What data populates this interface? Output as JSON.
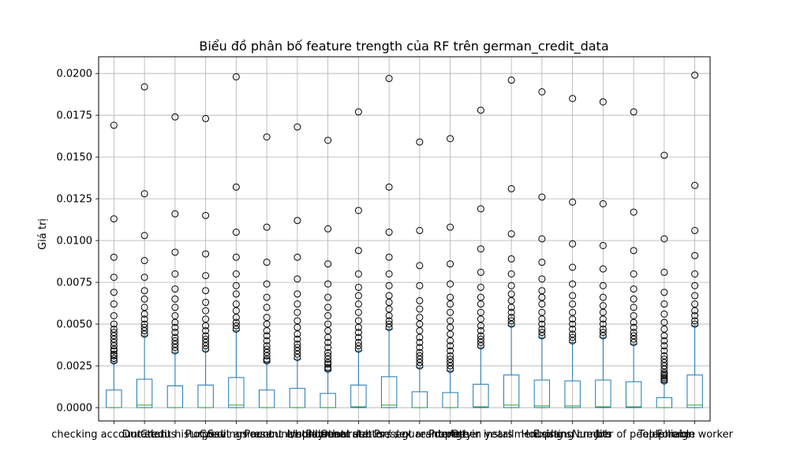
{
  "chart_data": {
    "type": "boxplot",
    "title": "Biểu đồ phân bố feature trength của RF trên german_credit_data",
    "xlabel": "",
    "ylabel": "Giá trị",
    "ylim": [
      -0.0008,
      0.021
    ],
    "yticks": [
      0.0,
      0.0025,
      0.005,
      0.0075,
      0.01,
      0.0125,
      0.015,
      0.0175,
      0.02
    ],
    "ytick_labels": [
      "0.0000",
      "0.0025",
      "0.0050",
      "0.0075",
      "0.0100",
      "0.0125",
      "0.0150",
      "0.0175",
      "0.0200"
    ],
    "grid": true,
    "box_color": "#1f77b4",
    "median_color": "#2ca02c",
    "flier_color": "#000000",
    "categories": [
      "checking account status",
      "Duration",
      "Credit history",
      "Purpose",
      "Credit amount",
      "Savings account/bonds",
      "Present employment",
      "Installment rate",
      "Personal status / sex",
      "Other debtors / guarantors",
      "Present residence",
      "Property",
      "Age in years",
      "Other installment plans",
      "Housing",
      "Existing credits",
      "Job",
      "Number of people liable",
      "Telephone",
      "Foreign worker"
    ],
    "series": [
      {
        "q1": 0.0,
        "median": 0.0,
        "q3": 0.00105,
        "whisker_high": 0.0027,
        "outliers": [
          0.0028,
          0.00295,
          0.0031,
          0.0032,
          0.0034,
          0.0035,
          0.0037,
          0.0039,
          0.0041,
          0.0043,
          0.0045,
          0.0047,
          0.005,
          0.0055,
          0.0062,
          0.0069,
          0.0078,
          0.009,
          0.0113,
          0.0169
        ]
      },
      {
        "q1": 0.0,
        "median": 0.00015,
        "q3": 0.0017,
        "whisker_high": 0.0043,
        "outliers": [
          0.0044,
          0.0046,
          0.0048,
          0.005,
          0.0053,
          0.0056,
          0.006,
          0.0065,
          0.007,
          0.0078,
          0.0088,
          0.0103,
          0.0128,
          0.0192
        ]
      },
      {
        "q1": 0.0,
        "median": 0.0,
        "q3": 0.0013,
        "whisker_high": 0.0033,
        "outliers": [
          0.0034,
          0.0036,
          0.0038,
          0.004,
          0.0042,
          0.0045,
          0.0048,
          0.0051,
          0.0055,
          0.006,
          0.0065,
          0.0071,
          0.008,
          0.0093,
          0.0116,
          0.0174
        ]
      },
      {
        "q1": 0.0,
        "median": 0.0,
        "q3": 0.00135,
        "whisker_high": 0.0034,
        "outliers": [
          0.0035,
          0.0037,
          0.0039,
          0.0041,
          0.0043,
          0.0046,
          0.0049,
          0.0053,
          0.0058,
          0.0063,
          0.007,
          0.0079,
          0.0092,
          0.0115,
          0.0173
        ]
      },
      {
        "q1": 0.0,
        "median": 0.00015,
        "q3": 0.0018,
        "whisker_high": 0.0046,
        "outliers": [
          0.0047,
          0.0049,
          0.0051,
          0.0054,
          0.0058,
          0.0062,
          0.0068,
          0.0073,
          0.008,
          0.009,
          0.0105,
          0.0132,
          0.0198
        ]
      },
      {
        "q1": 0.0,
        "median": 0.0,
        "q3": 0.00105,
        "whisker_high": 0.0027,
        "outliers": [
          0.0028,
          0.0029,
          0.0031,
          0.0033,
          0.0035,
          0.0037,
          0.004,
          0.0043,
          0.0046,
          0.005,
          0.0054,
          0.006,
          0.0066,
          0.0074,
          0.0087,
          0.0108,
          0.0162
        ]
      },
      {
        "q1": 0.0,
        "median": 0.0,
        "q3": 0.00115,
        "whisker_high": 0.0029,
        "outliers": [
          0.003,
          0.0032,
          0.0034,
          0.0036,
          0.0038,
          0.0041,
          0.0044,
          0.0048,
          0.0052,
          0.0057,
          0.0062,
          0.0068,
          0.0077,
          0.009,
          0.0112,
          0.0168
        ]
      },
      {
        "q1": 0.0,
        "median": 0.0,
        "q3": 0.00085,
        "whisker_high": 0.0022,
        "outliers": [
          0.0023,
          0.0024,
          0.0026,
          0.0027,
          0.0029,
          0.0031,
          0.0033,
          0.0036,
          0.0039,
          0.0042,
          0.0046,
          0.005,
          0.0055,
          0.006,
          0.0066,
          0.0074,
          0.0086,
          0.0107,
          0.016
        ]
      },
      {
        "q1": 0.0,
        "median": 5e-05,
        "q3": 0.00135,
        "whisker_high": 0.0034,
        "outliers": [
          0.0035,
          0.0037,
          0.0039,
          0.0042,
          0.0045,
          0.0048,
          0.0052,
          0.0057,
          0.0062,
          0.0067,
          0.0072,
          0.008,
          0.0094,
          0.0118,
          0.0177
        ]
      },
      {
        "q1": 0.0,
        "median": 0.00015,
        "q3": 0.00185,
        "whisker_high": 0.0047,
        "outliers": [
          0.0048,
          0.005,
          0.0052,
          0.0055,
          0.0059,
          0.0063,
          0.0067,
          0.0073,
          0.008,
          0.009,
          0.0105,
          0.0132,
          0.0197
        ]
      },
      {
        "q1": 0.0,
        "median": 0.0,
        "q3": 0.00095,
        "whisker_high": 0.0024,
        "outliers": [
          0.0025,
          0.0027,
          0.0029,
          0.0031,
          0.0033,
          0.0036,
          0.0039,
          0.0042,
          0.0046,
          0.005,
          0.0054,
          0.0059,
          0.0064,
          0.0073,
          0.0085,
          0.0106,
          0.0159
        ]
      },
      {
        "q1": 0.0,
        "median": 0.0,
        "q3": 0.0009,
        "whisker_high": 0.0022,
        "outliers": [
          0.0023,
          0.0025,
          0.0027,
          0.0029,
          0.0031,
          0.0034,
          0.0037,
          0.004,
          0.0044,
          0.0048,
          0.0052,
          0.0057,
          0.0062,
          0.0066,
          0.0074,
          0.0086,
          0.0108,
          0.0161
        ]
      },
      {
        "q1": 0.0,
        "median": 5e-05,
        "q3": 0.0014,
        "whisker_high": 0.0036,
        "outliers": [
          0.0037,
          0.0039,
          0.0041,
          0.0043,
          0.0046,
          0.0049,
          0.0053,
          0.0057,
          0.0062,
          0.0066,
          0.0072,
          0.0081,
          0.0095,
          0.0119,
          0.0178
        ]
      },
      {
        "q1": 0.0,
        "median": 0.00015,
        "q3": 0.00195,
        "whisker_high": 0.0049,
        "outliers": [
          0.005,
          0.0052,
          0.0054,
          0.0057,
          0.006,
          0.0064,
          0.0068,
          0.0073,
          0.008,
          0.0089,
          0.0104,
          0.0131,
          0.0196
        ]
      },
      {
        "q1": 0.0,
        "median": 0.0001,
        "q3": 0.00165,
        "whisker_high": 0.0042,
        "outliers": [
          0.0043,
          0.0045,
          0.0047,
          0.005,
          0.0053,
          0.0057,
          0.0062,
          0.0066,
          0.007,
          0.0077,
          0.0087,
          0.0101,
          0.0126,
          0.0189
        ]
      },
      {
        "q1": 0.0,
        "median": 0.0001,
        "q3": 0.0016,
        "whisker_high": 0.0039,
        "outliers": [
          0.004,
          0.0042,
          0.0044,
          0.0047,
          0.005,
          0.0053,
          0.0057,
          0.0062,
          0.0067,
          0.0074,
          0.0084,
          0.0098,
          0.0123,
          0.0185
        ]
      },
      {
        "q1": 0.0,
        "median": 5e-05,
        "q3": 0.00165,
        "whisker_high": 0.0042,
        "outliers": [
          0.0043,
          0.0045,
          0.0047,
          0.005,
          0.0053,
          0.0057,
          0.0061,
          0.0066,
          0.0073,
          0.0083,
          0.0097,
          0.0122,
          0.0183
        ]
      },
      {
        "q1": 0.0,
        "median": 5e-05,
        "q3": 0.00155,
        "whisker_high": 0.0038,
        "outliers": [
          0.0039,
          0.0041,
          0.0043,
          0.0045,
          0.0048,
          0.0051,
          0.0055,
          0.006,
          0.0065,
          0.0071,
          0.008,
          0.0094,
          0.0117,
          0.0177
        ]
      },
      {
        "q1": 0.0,
        "median": 0.0,
        "q3": 0.0006,
        "whisker_high": 0.0015,
        "outliers": [
          0.0016,
          0.0017,
          0.0018,
          0.0019,
          0.002,
          0.0021,
          0.0023,
          0.0025,
          0.0027,
          0.0029,
          0.0031,
          0.0034,
          0.0037,
          0.004,
          0.0043,
          0.0047,
          0.0051,
          0.0056,
          0.0062,
          0.0069,
          0.0081,
          0.0101,
          0.0151
        ]
      },
      {
        "q1": 0.0,
        "median": 0.00015,
        "q3": 0.00195,
        "whisker_high": 0.0049,
        "outliers": [
          0.005,
          0.0052,
          0.0055,
          0.0058,
          0.0062,
          0.0067,
          0.0073,
          0.008,
          0.0091,
          0.0106,
          0.0133,
          0.0199
        ]
      }
    ]
  }
}
